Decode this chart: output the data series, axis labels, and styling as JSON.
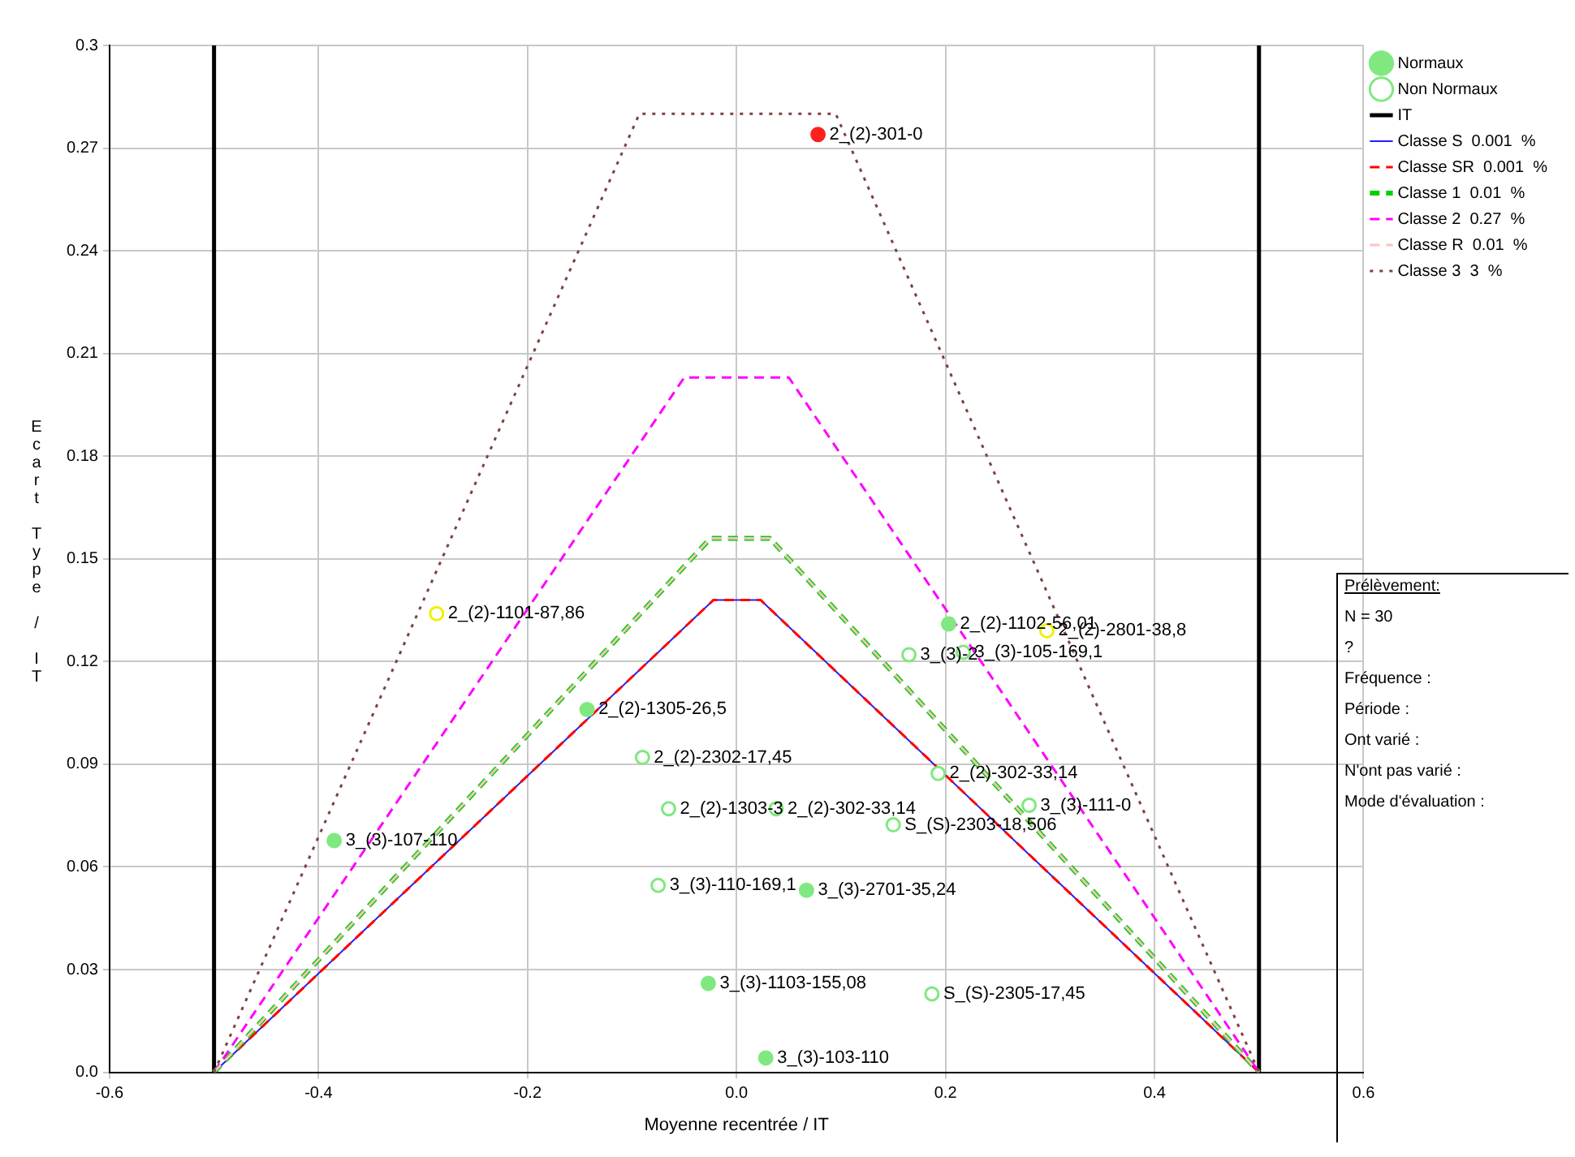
{
  "chart_data": {
    "type": "scatter",
    "xlabel": "Moyenne recentrée / IT",
    "ylabel": "Ecart Type / IT",
    "xlim": [
      -0.6,
      0.6
    ],
    "xticks": [
      {
        "value": -0.6,
        "label": "-0.6"
      },
      {
        "value": -0.4,
        "label": "-0.4"
      },
      {
        "value": -0.2,
        "label": "-0.2"
      },
      {
        "value": 0,
        "label": "0.0"
      },
      {
        "value": 0.2,
        "label": "0.2"
      },
      {
        "value": 0.4,
        "label": "0.4"
      },
      {
        "value": 0.6,
        "label": "0.6"
      }
    ],
    "ylim": [
      0,
      0.3
    ],
    "yticks": [
      {
        "value": 0,
        "label": "0.0"
      },
      0.03,
      0.06,
      0.09,
      0.12,
      0.15,
      0.18,
      0.21,
      0.24,
      0.27,
      0.3
    ],
    "grid": true,
    "legend": "top right",
    "series": [
      {
        "name": "Normaux",
        "marker": "circle",
        "color": "#80e880",
        "x": [
          0.078,
          -0.143,
          -0.385,
          0.203,
          0.067,
          -0.027,
          0.028
        ],
        "values": [
          0.274,
          0.106,
          0.0677,
          0.131,
          0.0532,
          0.026,
          0.0042
        ],
        "colors": [
          "#ff2020",
          "#80e880",
          "#80e880",
          "#80e880",
          "#80e880",
          "#80e880",
          "#80e880"
        ],
        "value_labels": [
          "2_(2)-301-0",
          "2_(2)-1305-26,5",
          "3_(3)-107-110",
          "2_(2)-1102-56,01",
          "3_(3)-2701-35,24",
          "3_(3)-1103-155,08",
          "3_(3)-103-110"
        ]
      },
      {
        "name": "Non Normaux",
        "marker": "open circle",
        "color": "#80e880",
        "x": [
          -0.287,
          -0.09,
          -0.065,
          0.038,
          0.15,
          -0.075,
          0.187,
          0.297,
          0.165,
          0.217,
          0.193,
          0.28
        ],
        "values": [
          0.134,
          0.092,
          0.077,
          0.077,
          0.0723,
          0.0546,
          0.0229,
          0.129,
          0.122,
          0.1227,
          0.0873,
          0.078
        ],
        "colors": [
          "#f0f000",
          "#80e880",
          "#80e880",
          "#80e880",
          "#80e880",
          "#80e880",
          "#80e880",
          "#f0f000",
          "#80e880",
          "#80e880",
          "#80e880",
          "#80e880"
        ],
        "value_labels": [
          "2_(2)-1101-87,86",
          "2_(2)-2302-17,45",
          "2_(2)-1303-3",
          "2_(2)-302-33,14",
          "S_(S)-2303-18,506",
          "3_(3)-110-169,1",
          "S_(S)-2305-17,45",
          "2_(2)-2801-38,8",
          "3_(3)-2",
          "3_(3)-105-169,1",
          "2_(2)-302-33,14",
          "3_(3)-111-0"
        ]
      },
      {
        "name": "IT",
        "type": "line",
        "line_style": "solid",
        "color": "#000000",
        "x": [
          -0.5,
          -0.5,
          null,
          0.5,
          0.5
        ],
        "values": [
          0,
          0.3,
          null,
          0.3,
          0
        ]
      },
      {
        "name": "Classe S  0.001  %",
        "type": "line",
        "line_style": "solid",
        "color": "#2020ff",
        "x": [
          -0.5,
          -0.022,
          0.023,
          0.5
        ],
        "values": [
          0,
          0.138,
          0.138,
          0
        ]
      },
      {
        "name": "Classe SR  0.001  %",
        "type": "line",
        "line_style": "dashed",
        "color": "#ff0000",
        "x": [
          -0.5,
          -0.022,
          0.023,
          0.5
        ],
        "values": [
          0,
          0.138,
          0.138,
          0
        ]
      },
      {
        "name": "Classe 1  0.01  %",
        "type": "line",
        "line_style": "dashed",
        "color": "#00d000",
        "x": [
          -0.5,
          -0.025,
          0.032,
          0.5
        ],
        "values": [
          0,
          0.156,
          0.156,
          0
        ]
      },
      {
        "name": "Classe 2  0.27  %",
        "type": "line",
        "line_style": "dashed",
        "color": "#ff00ff",
        "x": [
          -0.5,
          -0.05,
          0.05,
          0.5
        ],
        "values": [
          0,
          0.203,
          0.203,
          0
        ]
      },
      {
        "name": "Classe R  0.01  %",
        "type": "line",
        "line_style": "dashed",
        "color": "#ffc0c0",
        "x": [
          -0.5,
          -0.025,
          0.032,
          0.5
        ],
        "values": [
          0,
          0.156,
          0.156,
          0
        ]
      },
      {
        "name": "Classe 3  3  %",
        "type": "line",
        "line_style": "dotted",
        "color": "#804040",
        "x": [
          -0.5,
          -0.093,
          0.095,
          0.5
        ],
        "values": [
          0,
          0.28,
          0.28,
          0
        ]
      }
    ],
    "annotations": [
      "Prélèvement:",
      "N =  30",
      "?",
      "Fréquence :",
      "Période :",
      "Ont varié :",
      "N'ont pas varié :",
      "Mode d'évaluation :"
    ]
  }
}
